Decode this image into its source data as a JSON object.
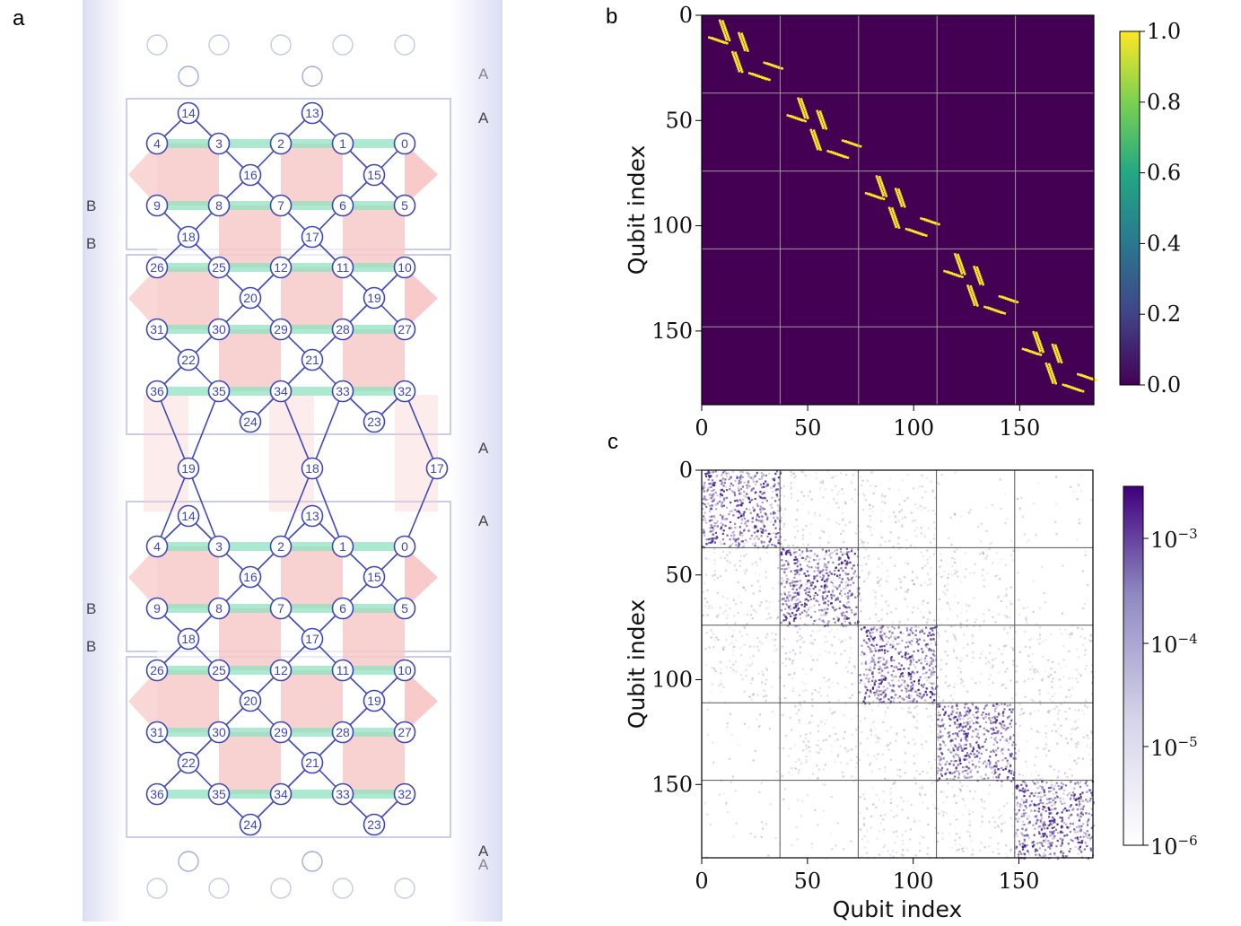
{
  "panels": {
    "a": "a",
    "b": "b",
    "c": "c"
  },
  "lattice": {
    "region_labels": {
      "A": "A",
      "B": "B"
    },
    "top_block": {
      "row1": [
        "14",
        "13"
      ],
      "row2": [
        "4",
        "3",
        "2",
        "1",
        "0"
      ],
      "row3": [
        "16",
        "15"
      ],
      "row4": [
        "9",
        "8",
        "7",
        "6",
        "5"
      ],
      "row5": [
        "18",
        "17"
      ],
      "row6": [
        "26",
        "25",
        "12",
        "11",
        "10"
      ],
      "row7": [
        "20",
        "19"
      ],
      "row8": [
        "31",
        "30",
        "29",
        "28",
        "27"
      ],
      "row9": [
        "22",
        "21"
      ],
      "row10": [
        "36",
        "35",
        "34",
        "33",
        "32"
      ],
      "row11": [
        "24",
        "23"
      ]
    },
    "link_qubits": [
      "19",
      "18",
      "17"
    ],
    "bottom_block": {
      "row1": [
        "14",
        "13"
      ],
      "row2": [
        "4",
        "3",
        "2",
        "1",
        "0"
      ],
      "row3": [
        "16",
        "15"
      ],
      "row4": [
        "9",
        "8",
        "7",
        "6",
        "5"
      ],
      "row5": [
        "18",
        "17"
      ],
      "row6": [
        "26",
        "25",
        "12",
        "11",
        "10"
      ],
      "row7": [
        "20",
        "19"
      ],
      "row8": [
        "31",
        "30",
        "29",
        "28",
        "27"
      ],
      "row9": [
        "22",
        "21"
      ],
      "row10": [
        "36",
        "35",
        "34",
        "33",
        "32"
      ],
      "row11": [
        "24",
        "23"
      ]
    }
  },
  "chart_data": [
    {
      "type": "heatmap",
      "panel": "b",
      "xlabel": "",
      "ylabel": "Qubit index",
      "xlim": [
        0,
        185
      ],
      "ylim": [
        185,
        0
      ],
      "x_ticks": [
        "0",
        "50",
        "100",
        "150"
      ],
      "y_ticks": [
        "0",
        "50",
        "100",
        "150"
      ],
      "block_size": 37,
      "num_blocks": 5,
      "colorbar": {
        "min": 0.0,
        "max": 1.0,
        "ticks": [
          "0.0",
          "0.2",
          "0.4",
          "0.6",
          "0.8",
          "1.0"
        ],
        "colormap": "viridis"
      },
      "background_color": "#440154",
      "entry_color": "#fde725",
      "grid_color": "#9a9a9a"
    },
    {
      "type": "heatmap",
      "panel": "c",
      "xlabel": "Qubit index",
      "ylabel": "Qubit index",
      "xlim": [
        0,
        185
      ],
      "ylim": [
        185,
        0
      ],
      "x_ticks": [
        "0",
        "50",
        "100",
        "150"
      ],
      "y_ticks": [
        "0",
        "50",
        "100",
        "150"
      ],
      "block_size": 37,
      "num_blocks": 5,
      "colorbar": {
        "scale": "log",
        "ticks": [
          "10",
          "10",
          "10",
          "10"
        ],
        "exponents": [
          "−3",
          "−4",
          "−5",
          "−6"
        ],
        "colormap": "Purples"
      },
      "dense_color": "#3d1b8c",
      "grid_color": "#555555"
    }
  ]
}
